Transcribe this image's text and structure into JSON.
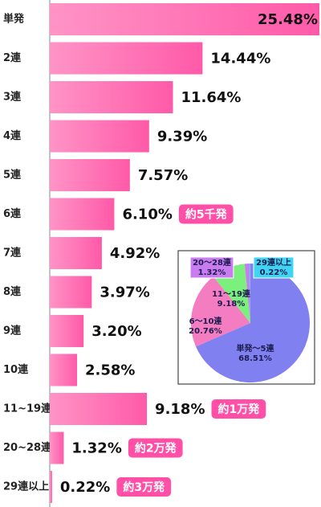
{
  "chart_data": [
    {
      "type": "bar",
      "categories": [
        "単発",
        "2連",
        "3連",
        "4連",
        "5連",
        "6連",
        "7連",
        "8連",
        "9連",
        "10連",
        "11~19連",
        "20~28連",
        "29連以上"
      ],
      "values": [
        25.48,
        14.44,
        11.64,
        9.39,
        7.57,
        6.1,
        4.92,
        3.97,
        3.2,
        2.58,
        9.18,
        1.32,
        0.22
      ],
      "value_labels": [
        "25.48%",
        "14.44%",
        "11.64%",
        "9.39%",
        "7.57%",
        "6.10%",
        "4.92%",
        "3.97%",
        "3.20%",
        "2.58%",
        "9.18%",
        "1.32%",
        "0.22%"
      ],
      "callouts": [
        null,
        null,
        null,
        null,
        null,
        "約5千発",
        null,
        null,
        null,
        null,
        "約1万発",
        "約2万発",
        "約3万発"
      ],
      "color": "#ff5aa8",
      "callout_color": "#ff4fa7"
    },
    {
      "type": "pie",
      "categories": [
        "単発〜5連",
        "6〜10連",
        "11〜19連",
        "20〜28連",
        "29連以上"
      ],
      "values": [
        68.51,
        20.76,
        9.18,
        1.32,
        0.22
      ],
      "value_labels": [
        "68.51%",
        "20.76%",
        "9.18%",
        "1.32%",
        "0.22%"
      ],
      "colors": [
        "#8080f0",
        "#f47cc0",
        "#7cf07c",
        "#c97cf0",
        "#40d4f4"
      ]
    }
  ]
}
